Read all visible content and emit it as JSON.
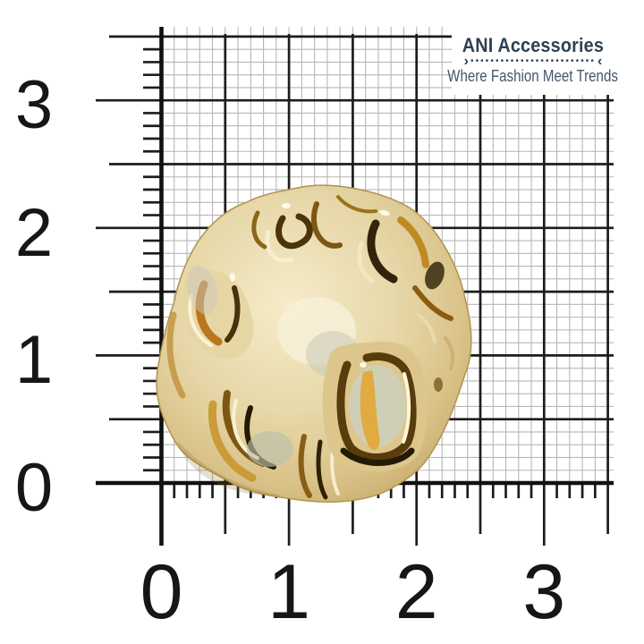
{
  "page": {
    "background": "#ffffff"
  },
  "brand": {
    "name": "ANI Accessories",
    "tagline": "Where Fashion Meet Trends",
    "divider_left": "›",
    "divider_right": "‹",
    "divider_dots": "•••••••••••••••••••••••••",
    "name_color": "#2e4154",
    "tagline_color": "#46566b"
  },
  "ruler": {
    "x_tick_labels": [
      "0",
      "1",
      "2",
      "3"
    ],
    "y_tick_labels": [
      "0",
      "1",
      "2",
      "3"
    ],
    "label_color": "#161616",
    "axis_color": "#111111",
    "grid_color": "#1d1d1d",
    "fine_grid_color": "#b6b6b6"
  },
  "product": {
    "name": "crumpled-gold-metal-scrunchie",
    "gold_light": "#f2e8c6",
    "gold_base": "#e2cf9c",
    "amber": "#bd8a25",
    "bronze": "#7a540f",
    "deep_shadow": "#2c1f05",
    "sheen_gray": "#c4c8b6",
    "highlight": "#fdf8e4"
  }
}
